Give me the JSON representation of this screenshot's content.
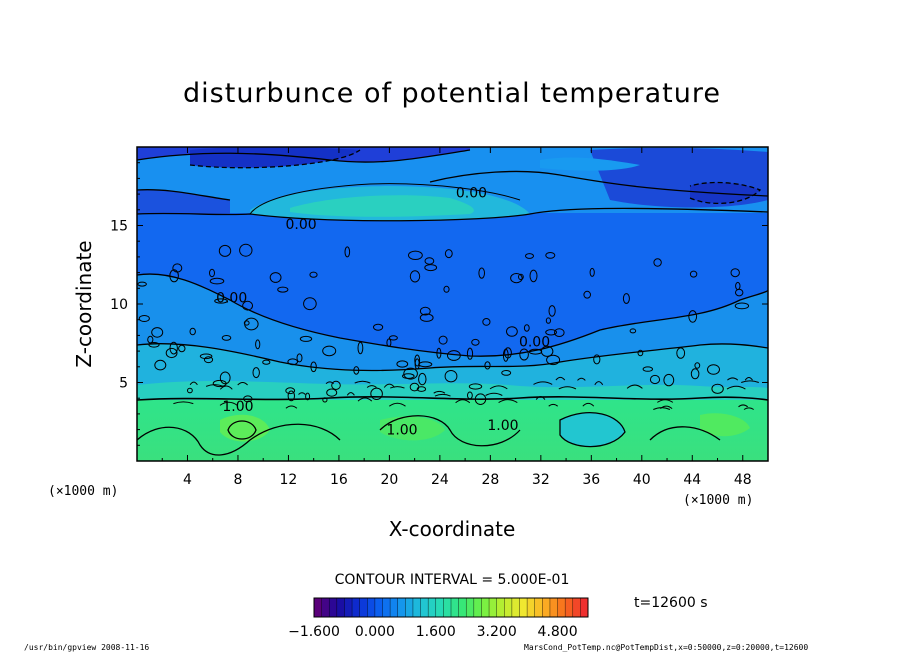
{
  "chart_data": {
    "type": "heatmap",
    "title": "disturbunce of potential temperature",
    "xlabel": "X-coordinate",
    "ylabel": "Z-coordinate",
    "x_unit_left": "(×1000 m)",
    "x_unit_right": "(×1000 m)",
    "xlim": [
      0,
      50
    ],
    "ylim": [
      0,
      20
    ],
    "x_ticks": [
      4,
      8,
      12,
      16,
      20,
      24,
      28,
      32,
      36,
      40,
      44,
      48
    ],
    "y_ticks": [
      5,
      10,
      15
    ],
    "contour_interval_text": "CONTOUR INTERVAL = 5.000E-01",
    "contour_labels": [
      {
        "text": "0.00",
        "x": 26.5,
        "z": 17.1
      },
      {
        "text": "0.00",
        "x": 13.0,
        "z": 15.1
      },
      {
        "text": "0.00",
        "x": 7.5,
        "z": 10.4
      },
      {
        "text": "0.00",
        "x": 31.5,
        "z": 7.6
      },
      {
        "text": "1.00",
        "x": 8.0,
        "z": 3.5
      },
      {
        "text": "1.00",
        "x": 21.0,
        "z": 2.0
      },
      {
        "text": "1.00",
        "x": 29.0,
        "z": 2.3
      }
    ],
    "colorbar": {
      "min": -1.6,
      "max": 5.6,
      "tick_labels": [
        "−1.600",
        "0.000",
        "1.600",
        "3.200",
        "4.800"
      ],
      "colors": [
        "#5a007a",
        "#1c0a9e",
        "#0c2fd4",
        "#0b60f0",
        "#1492ee",
        "#1fc0d8",
        "#27dcb4",
        "#34e67a",
        "#6ef046",
        "#b8ee30",
        "#f0e830",
        "#fbb424",
        "#f86f1c",
        "#ef2f2f"
      ]
    },
    "time_label": "t=12600 s",
    "footer_left": "/usr/bin/gpview   2008-11-16",
    "footer_right": "MarsCond_PotTemp.nc@PotTempDist,x=0:50000,z=0:20000,t=12600"
  }
}
